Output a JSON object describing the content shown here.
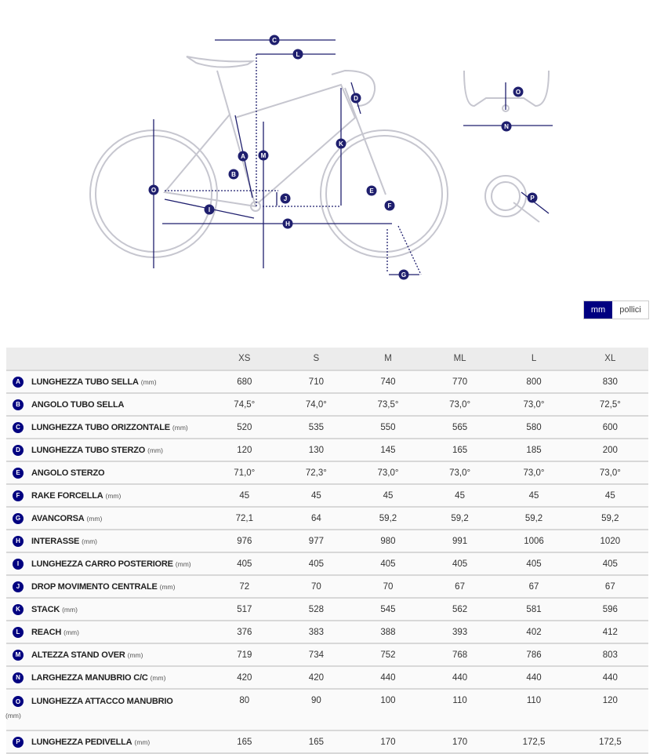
{
  "diagram": {
    "labels": [
      "A",
      "B",
      "C",
      "D",
      "E",
      "F",
      "G",
      "H",
      "I",
      "J",
      "K",
      "L",
      "M",
      "N",
      "O",
      "P"
    ],
    "line_color": "#1f1f6e",
    "bike_color": "#c8c8d0"
  },
  "units": {
    "mm": "mm",
    "in": "pollici",
    "selected": "mm",
    "accent": "#000080"
  },
  "table": {
    "sizes": [
      "XS",
      "S",
      "M",
      "ML",
      "L",
      "XL"
    ],
    "rows": [
      {
        "key": "A",
        "name": "LUNGHEZZA TUBO SELLA",
        "unit": "(mm)",
        "values": [
          "680",
          "710",
          "740",
          "770",
          "800",
          "830"
        ]
      },
      {
        "key": "B",
        "name": "ANGOLO TUBO SELLA",
        "unit": "",
        "values": [
          "74,5°",
          "74,0°",
          "73,5°",
          "73,0°",
          "73,0°",
          "72,5°"
        ]
      },
      {
        "key": "C",
        "name": "LUNGHEZZA TUBO ORIZZONTALE",
        "unit": "(mm)",
        "values": [
          "520",
          "535",
          "550",
          "565",
          "580",
          "600"
        ]
      },
      {
        "key": "D",
        "name": "LUNGHEZZA TUBO STERZO",
        "unit": "(mm)",
        "values": [
          "120",
          "130",
          "145",
          "165",
          "185",
          "200"
        ]
      },
      {
        "key": "E",
        "name": "ANGOLO STERZO",
        "unit": "",
        "values": [
          "71,0°",
          "72,3°",
          "73,0°",
          "73,0°",
          "73,0°",
          "73,0°"
        ]
      },
      {
        "key": "F",
        "name": "RAKE FORCELLA",
        "unit": "(mm)",
        "values": [
          "45",
          "45",
          "45",
          "45",
          "45",
          "45"
        ]
      },
      {
        "key": "G",
        "name": "AVANCORSA",
        "unit": "(mm)",
        "values": [
          "72,1",
          "64",
          "59,2",
          "59,2",
          "59,2",
          "59,2"
        ]
      },
      {
        "key": "H",
        "name": "INTERASSE",
        "unit": "(mm)",
        "values": [
          "976",
          "977",
          "980",
          "991",
          "1006",
          "1020"
        ]
      },
      {
        "key": "I",
        "name": "LUNGHEZZA CARRO POSTERIORE",
        "unit": "(mm)",
        "values": [
          "405",
          "405",
          "405",
          "405",
          "405",
          "405"
        ]
      },
      {
        "key": "J",
        "name": "DROP MOVIMENTO CENTRALE",
        "unit": "(mm)",
        "values": [
          "72",
          "70",
          "70",
          "67",
          "67",
          "67"
        ]
      },
      {
        "key": "K",
        "name": "STACK",
        "unit": "(mm)",
        "values": [
          "517",
          "528",
          "545",
          "562",
          "581",
          "596"
        ]
      },
      {
        "key": "L",
        "name": "REACH",
        "unit": "(mm)",
        "values": [
          "376",
          "383",
          "388",
          "393",
          "402",
          "412"
        ]
      },
      {
        "key": "M",
        "name": "ALTEZZA STAND OVER",
        "unit": "(mm)",
        "values": [
          "719",
          "734",
          "752",
          "768",
          "786",
          "803"
        ]
      },
      {
        "key": "N",
        "name": "LARGHEZZA MANUBRIO C/C",
        "unit": "(mm)",
        "values": [
          "420",
          "420",
          "440",
          "440",
          "440",
          "440"
        ]
      },
      {
        "key": "O",
        "name": "LUNGHEZZA ATTACCO MANUBRIO",
        "unit": "(mm)",
        "values": [
          "80",
          "90",
          "100",
          "110",
          "110",
          "120"
        ],
        "wrap": true
      },
      {
        "key": "P",
        "name": "LUNGHEZZA PEDIVELLA",
        "unit": "(mm)",
        "values": [
          "165",
          "165",
          "170",
          "170",
          "172,5",
          "172,5"
        ]
      }
    ]
  }
}
